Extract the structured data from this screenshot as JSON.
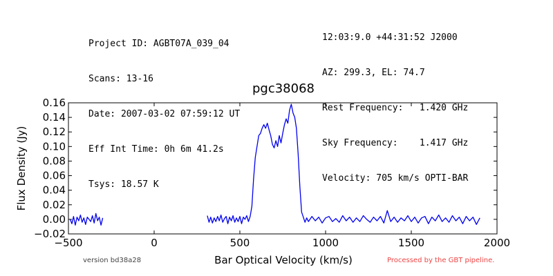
{
  "header": {
    "left": [
      "Project ID: AGBT07A_039_04",
      "Scans: 13-16",
      "Date: 2007-03-02 07:59:12 UT",
      "Eff Int Time: 0h 6m 41.2s",
      "Tsys: 18.57 K"
    ],
    "right": [
      "12:03:9.0 +44:31:52 J2000",
      "AZ: 299.3, EL: 74.7",
      "Rest Frequency:   1.420 GHz",
      "Sky Frequency:    1.417 GHz",
      "Velocity: 705 km/s OPTI-BAR"
    ]
  },
  "footer": {
    "version": "version bd38a28",
    "pipeline": "Processed by the GBT pipeline."
  },
  "colors": {
    "line": "#0000ee",
    "pipeline_text": "#ee4444",
    "version_text": "#444444"
  },
  "chart_data": {
    "type": "line",
    "title": "pgc38068",
    "xlabel": "Bar Optical Velocity (km/s)",
    "ylabel": "Flux Density (Jy)",
    "xlim": [
      -500,
      2000
    ],
    "ylim": [
      -0.02,
      0.16
    ],
    "xticks": [
      -500,
      0,
      500,
      1000,
      1500,
      2000
    ],
    "xtick_labels": [
      "−500",
      "0",
      "500",
      "1000",
      "1500",
      "2000"
    ],
    "yticks": [
      -0.02,
      0.0,
      0.02,
      0.04,
      0.06,
      0.08,
      0.1,
      0.12,
      0.14,
      0.16
    ],
    "ytick_labels": [
      "−0.02",
      "0.00",
      "0.02",
      "0.04",
      "0.06",
      "0.08",
      "0.10",
      "0.12",
      "0.14",
      "0.16"
    ],
    "grid": false,
    "series": [
      {
        "color": "#0000ee",
        "segments": [
          {
            "x": [
              -490,
              -480,
              -470,
              -460,
              -450,
              -440,
              -430,
              -420,
              -410,
              -400,
              -390,
              -380,
              -370,
              -360,
              -350,
              -340,
              -330,
              -320,
              -310,
              -300
            ],
            "y": [
              0.0,
              -0.006,
              0.004,
              -0.008,
              0.003,
              -0.002,
              0.006,
              -0.004,
              0.002,
              -0.007,
              0.003,
              0.0,
              -0.003,
              0.005,
              -0.005,
              0.008,
              -0.002,
              0.003,
              -0.008,
              0.002
            ]
          },
          {
            "x": [
              310,
              320,
              330,
              340,
              350,
              360,
              370,
              380,
              390,
              400,
              410,
              420,
              430,
              440,
              450,
              460,
              470,
              480,
              490,
              500,
              510,
              520,
              530,
              540,
              550,
              560,
              570,
              580,
              590,
              600,
              610,
              620,
              630,
              640,
              650,
              660,
              670,
              680,
              690,
              700,
              710,
              720,
              730,
              740,
              750,
              760,
              770,
              780,
              790,
              800,
              810,
              820,
              830,
              840,
              850,
              860,
              870,
              880,
              890,
              900,
              920,
              940,
              960,
              980,
              1000,
              1020,
              1040,
              1060,
              1080,
              1100,
              1120,
              1140,
              1160,
              1180,
              1200,
              1220,
              1240,
              1260,
              1280,
              1300,
              1320,
              1340,
              1360,
              1380,
              1400,
              1420,
              1440,
              1460,
              1480,
              1500,
              1520,
              1540,
              1560,
              1580,
              1600,
              1620,
              1640,
              1660,
              1680,
              1700,
              1720,
              1740,
              1760,
              1780,
              1800,
              1820,
              1840,
              1860,
              1880,
              1900
            ],
            "y": [
              0.005,
              -0.004,
              0.003,
              -0.005,
              0.002,
              -0.003,
              0.004,
              -0.002,
              0.006,
              -0.004,
              0.001,
              0.004,
              -0.006,
              0.003,
              -0.002,
              0.005,
              -0.004,
              0.002,
              -0.003,
              0.004,
              -0.006,
              0.003,
              0.0,
              0.005,
              -0.003,
              0.004,
              0.018,
              0.055,
              0.085,
              0.1,
              0.115,
              0.118,
              0.125,
              0.13,
              0.125,
              0.132,
              0.123,
              0.115,
              0.103,
              0.098,
              0.108,
              0.1,
              0.115,
              0.105,
              0.118,
              0.13,
              0.138,
              0.132,
              0.15,
              0.158,
              0.146,
              0.14,
              0.125,
              0.09,
              0.045,
              0.01,
              0.003,
              -0.004,
              0.002,
              -0.003,
              0.004,
              -0.002,
              0.003,
              -0.005,
              0.002,
              0.004,
              -0.003,
              0.001,
              -0.004,
              0.005,
              -0.002,
              0.003,
              -0.004,
              0.002,
              -0.003,
              0.005,
              0.0,
              -0.004,
              0.003,
              -0.002,
              0.004,
              -0.005,
              0.012,
              -0.003,
              0.003,
              -0.004,
              0.002,
              -0.002,
              0.005,
              -0.003,
              0.003,
              -0.005,
              0.002,
              0.004,
              -0.006,
              0.003,
              -0.002,
              0.006,
              -0.003,
              0.002,
              -0.004,
              0.005,
              -0.002,
              0.003,
              -0.006,
              0.004,
              -0.002,
              0.003,
              -0.007,
              0.002
            ]
          }
        ]
      }
    ]
  }
}
